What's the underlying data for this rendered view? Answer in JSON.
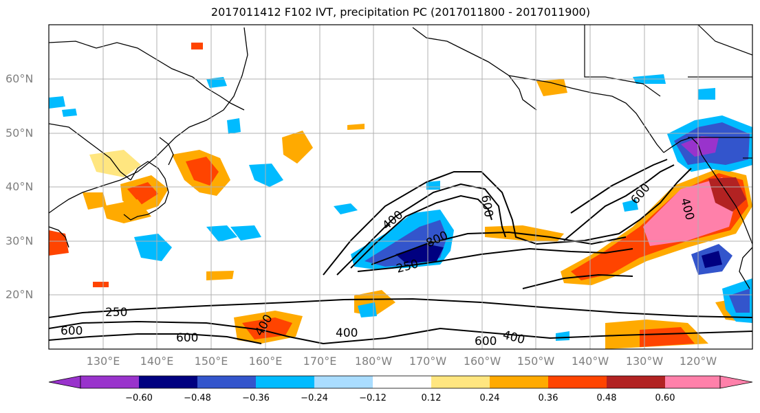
{
  "title": "2017011412 F102 IVT, precipitation PC (2017011800 - 2017011900)",
  "lat_labels": [
    "60°N",
    "50°N",
    "40°N",
    "30°N",
    "20°N"
  ],
  "lon_labels": [
    "130°E",
    "140°E",
    "150°E",
    "160°E",
    "170°E",
    "180°W",
    "170°W",
    "160°W",
    "150°W",
    "140°W",
    "130°W",
    "120°W"
  ],
  "colorbar": {
    "ticks": [
      "−0.60",
      "−0.48",
      "−0.36",
      "−0.24",
      "−0.12",
      "0.12",
      "0.24",
      "0.36",
      "0.48",
      "0.60"
    ],
    "colors": [
      "#9933cc",
      "#000080",
      "#3355cc",
      "#00bbff",
      "#aaddff",
      "#ffffff",
      "#ffe680",
      "#ffaa00",
      "#ff4400",
      "#b22222",
      "#ff80aa"
    ]
  },
  "contour_labels": [
    "400",
    "600",
    "800",
    "250",
    "600",
    "400",
    "250",
    "600",
    "400",
    "600",
    "400",
    "600",
    "400"
  ],
  "colors": {
    "land_line": "#000000",
    "grid": "#b0b0b0"
  }
}
